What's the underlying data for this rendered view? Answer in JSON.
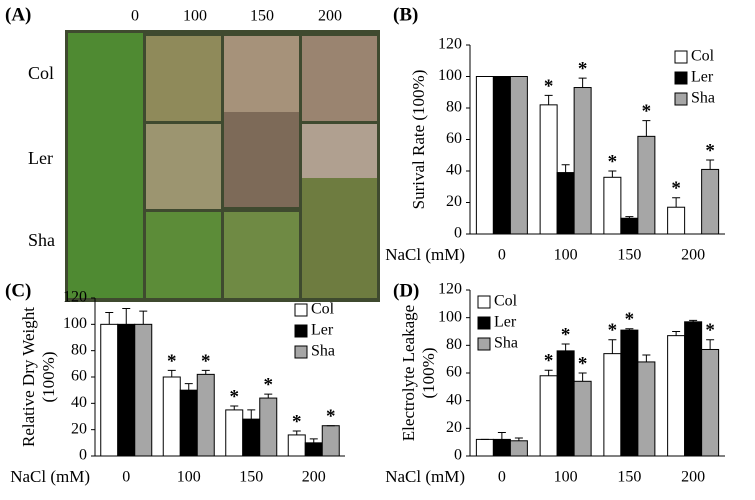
{
  "panel_a": {
    "label": "(A)",
    "columns": [
      "0",
      "100",
      "150",
      "200"
    ],
    "rows": [
      "Col",
      "Ler",
      "Sha"
    ]
  },
  "chart_data": [
    {
      "type": "bar",
      "panel_label": "(B)",
      "y_label": "Surival Rate (100%)",
      "x_label": "NaCl (mM)",
      "categories": [
        "0",
        "100",
        "150",
        "200"
      ],
      "ylim": [
        0,
        120
      ],
      "yticks": [
        0,
        20,
        40,
        60,
        80,
        100,
        120
      ],
      "legend": "upper right",
      "significance_label": "*",
      "series": [
        {
          "name": "Col",
          "color": "#ffffff",
          "values": [
            100,
            82,
            36,
            17
          ],
          "errors": [
            0,
            6,
            4,
            6
          ],
          "significant": [
            false,
            true,
            true,
            true
          ]
        },
        {
          "name": "Ler",
          "color": "#000000",
          "values": [
            100,
            39,
            10,
            0
          ],
          "errors": [
            0,
            5,
            1,
            0
          ],
          "significant": [
            false,
            false,
            false,
            false
          ]
        },
        {
          "name": "Sha",
          "color": "#a6a6a6",
          "values": [
            100,
            93,
            62,
            41
          ],
          "errors": [
            0,
            6,
            10,
            6
          ],
          "significant": [
            false,
            true,
            true,
            true
          ]
        }
      ]
    },
    {
      "type": "bar",
      "panel_label": "(C)",
      "y_label": [
        "Relative Dry Weight",
        "(100%)"
      ],
      "x_label": "NaCl (mM)",
      "categories": [
        "0",
        "100",
        "150",
        "200"
      ],
      "ylim": [
        0,
        120
      ],
      "yticks": [
        0,
        20,
        40,
        60,
        80,
        100,
        120
      ],
      "legend": "upper right",
      "significance_label": "*",
      "series": [
        {
          "name": "Col",
          "color": "#ffffff",
          "values": [
            100,
            60,
            35,
            16
          ],
          "errors": [
            9,
            5,
            3,
            3
          ],
          "significant": [
            false,
            true,
            true,
            true
          ]
        },
        {
          "name": "Ler",
          "color": "#000000",
          "values": [
            100,
            50,
            28,
            10
          ],
          "errors": [
            12,
            5,
            7,
            3
          ],
          "significant": [
            false,
            false,
            false,
            false
          ]
        },
        {
          "name": "Sha",
          "color": "#a6a6a6",
          "values": [
            100,
            62,
            44,
            23
          ],
          "errors": [
            10,
            3,
            3,
            0
          ],
          "significant": [
            false,
            true,
            true,
            true
          ]
        }
      ]
    },
    {
      "type": "bar",
      "panel_label": "(D)",
      "y_label": [
        "Electrolyte Leakage",
        "(100%)"
      ],
      "x_label": "NaCl (mM)",
      "categories": [
        "0",
        "100",
        "150",
        "200"
      ],
      "ylim": [
        0,
        120
      ],
      "yticks": [
        0,
        20,
        40,
        60,
        80,
        100,
        120
      ],
      "legend": "upper left",
      "significance_label": "*",
      "series": [
        {
          "name": "Col",
          "color": "#ffffff",
          "values": [
            12,
            58,
            74,
            87
          ],
          "errors": [
            0,
            4,
            10,
            3
          ],
          "significant": [
            false,
            true,
            true,
            false
          ]
        },
        {
          "name": "Ler",
          "color": "#000000",
          "values": [
            12,
            76,
            91,
            97
          ],
          "errors": [
            5,
            5,
            1,
            1
          ],
          "significant": [
            false,
            true,
            true,
            false
          ]
        },
        {
          "name": "Sha",
          "color": "#a6a6a6",
          "values": [
            11,
            54,
            68,
            77
          ],
          "errors": [
            2,
            6,
            5,
            7
          ],
          "significant": [
            false,
            true,
            false,
            true
          ]
        }
      ]
    }
  ]
}
